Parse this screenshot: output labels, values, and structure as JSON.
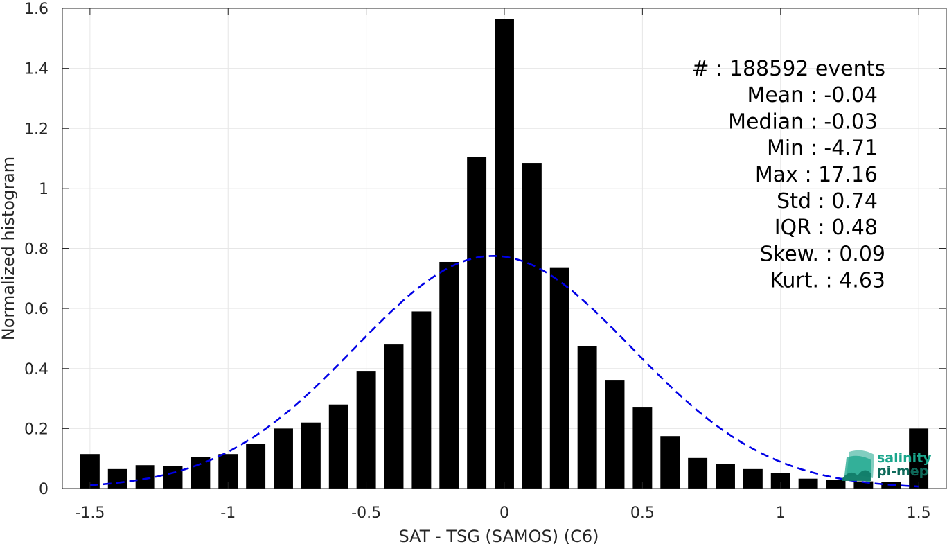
{
  "chart_data": {
    "type": "bar",
    "xlabel": "SAT - TSG (SAMOS) (C6)",
    "ylabel": "Normalized histogram",
    "xlim": [
      -1.6,
      1.6
    ],
    "ylim": [
      0,
      1.6
    ],
    "grid": true,
    "x_ticks": [
      {
        "value": -1.5,
        "label": "-1.5"
      },
      {
        "value": -1,
        "label": "-1"
      },
      {
        "value": -0.5,
        "label": "-0.5"
      },
      {
        "value": 0,
        "label": "0"
      },
      {
        "value": 0.5,
        "label": "0.5"
      },
      {
        "value": 1,
        "label": "1"
      },
      {
        "value": 1.5,
        "label": "1.5"
      }
    ],
    "y_ticks": [
      {
        "value": 0,
        "label": "0"
      },
      {
        "value": 0.2,
        "label": "0.2"
      },
      {
        "value": 0.4,
        "label": "0.4"
      },
      {
        "value": 0.6,
        "label": "0.6"
      },
      {
        "value": 0.8,
        "label": "0.8"
      },
      {
        "value": 1,
        "label": "1"
      },
      {
        "value": 1.2,
        "label": "1.2"
      },
      {
        "value": 1.4,
        "label": "1.4"
      },
      {
        "value": 1.6,
        "label": "1.6"
      }
    ],
    "bin_width": 0.1,
    "bar_fill_fraction": 0.7,
    "bar_color": "#000000",
    "bins": [
      -1.5,
      -1.4,
      -1.3,
      -1.2,
      -1.1,
      -1.0,
      -0.9,
      -0.8,
      -0.7,
      -0.6,
      -0.5,
      -0.4,
      -0.3,
      -0.2,
      -0.1,
      0.0,
      0.1,
      0.2,
      0.3,
      0.4,
      0.5,
      0.6,
      0.7,
      0.8,
      0.9,
      1.0,
      1.1,
      1.2,
      1.3,
      1.4,
      1.5
    ],
    "values": [
      0.115,
      0.065,
      0.078,
      0.075,
      0.105,
      0.115,
      0.15,
      0.2,
      0.22,
      0.28,
      0.39,
      0.48,
      0.59,
      0.755,
      1.105,
      1.565,
      1.085,
      0.735,
      0.475,
      0.36,
      0.27,
      0.175,
      0.102,
      0.082,
      0.065,
      0.052,
      0.033,
      0.028,
      0.024,
      0.022,
      0.2
    ],
    "fit_curve": {
      "type": "gaussian",
      "color": "#0000e6",
      "style": "dashed",
      "mean": -0.04,
      "std": 0.5,
      "peak": 0.775,
      "x_range": [
        -1.5,
        1.5
      ]
    },
    "annotations": [
      "#  : 188592 events",
      "Mean : -0.04",
      "Median : -0.03",
      "Min : -4.71",
      "Max : 17.16",
      "Std : 0.74",
      "IQR : 0.48",
      "Skew. : 0.09",
      "Kurt. : 4.63"
    ]
  },
  "logo": {
    "line1": "salinity",
    "line2": "pi-mep",
    "color": "#1aa68c",
    "icon": "wave-logo-icon"
  }
}
